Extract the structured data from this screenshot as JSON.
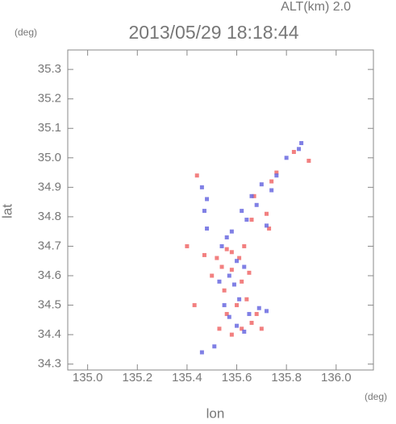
{
  "chart_data": {
    "type": "scatter",
    "title": "2013/05/29 18:18:44",
    "annotation": "ALT(km)  2.0",
    "y_unit": "(deg)",
    "x_unit": "(deg)",
    "xlabel": "lon",
    "ylabel": "lat",
    "xlim": [
      134.92,
      136.15
    ],
    "ylim": [
      34.28,
      35.366
    ],
    "xticks": [
      {
        "value": 135,
        "label": "135.0"
      },
      135.2,
      135.4,
      135.6,
      135.8,
      {
        "value": 136,
        "label": "136.0"
      }
    ],
    "yticks": [
      34.3,
      34.4,
      34.5,
      34.6,
      34.7,
      34.8,
      34.9,
      {
        "value": 35,
        "label": "35.0"
      },
      35.1,
      35.2,
      35.3
    ],
    "series": [
      {
        "color": "#f06a6a",
        "x": [
          135.89,
          135.44,
          135.72,
          135.73,
          135.67,
          135.56,
          135.52,
          135.58,
          135.62,
          135.55,
          135.65,
          135.6,
          135.68,
          135.7,
          135.53,
          135.58,
          135.43,
          135.56,
          135.64,
          135.61,
          135.47,
          135.5,
          135.66,
          135.83,
          135.76,
          135.63,
          135.54,
          135.58,
          135.66,
          135.62,
          135.4,
          135.74
        ],
        "y": [
          34.99,
          34.94,
          34.81,
          34.76,
          34.87,
          34.69,
          34.66,
          34.62,
          34.58,
          34.55,
          34.61,
          34.5,
          34.47,
          34.42,
          34.42,
          34.4,
          34.5,
          34.47,
          34.52,
          34.66,
          34.67,
          34.6,
          34.79,
          35.02,
          34.95,
          34.7,
          34.63,
          34.68,
          34.44,
          34.42,
          34.7,
          34.92
        ]
      },
      {
        "color": "#6a6ae0",
        "x": [
          135.86,
          135.8,
          135.76,
          135.7,
          135.66,
          135.74,
          135.62,
          135.64,
          135.47,
          135.48,
          135.46,
          135.56,
          135.54,
          135.6,
          135.57,
          135.63,
          135.59,
          135.53,
          135.61,
          135.65,
          135.69,
          135.57,
          135.55,
          135.6,
          135.51,
          135.46,
          135.63,
          135.72,
          135.58,
          135.68,
          135.85,
          135.72,
          135.48
        ],
        "y": [
          35.05,
          35.0,
          34.94,
          34.91,
          34.87,
          34.89,
          34.82,
          34.79,
          34.82,
          34.86,
          34.9,
          34.73,
          34.7,
          34.65,
          34.6,
          34.63,
          34.57,
          34.58,
          34.52,
          34.47,
          34.49,
          34.46,
          34.5,
          34.43,
          34.36,
          34.34,
          34.41,
          34.48,
          34.75,
          34.84,
          35.03,
          34.77,
          34.76
        ]
      }
    ]
  }
}
